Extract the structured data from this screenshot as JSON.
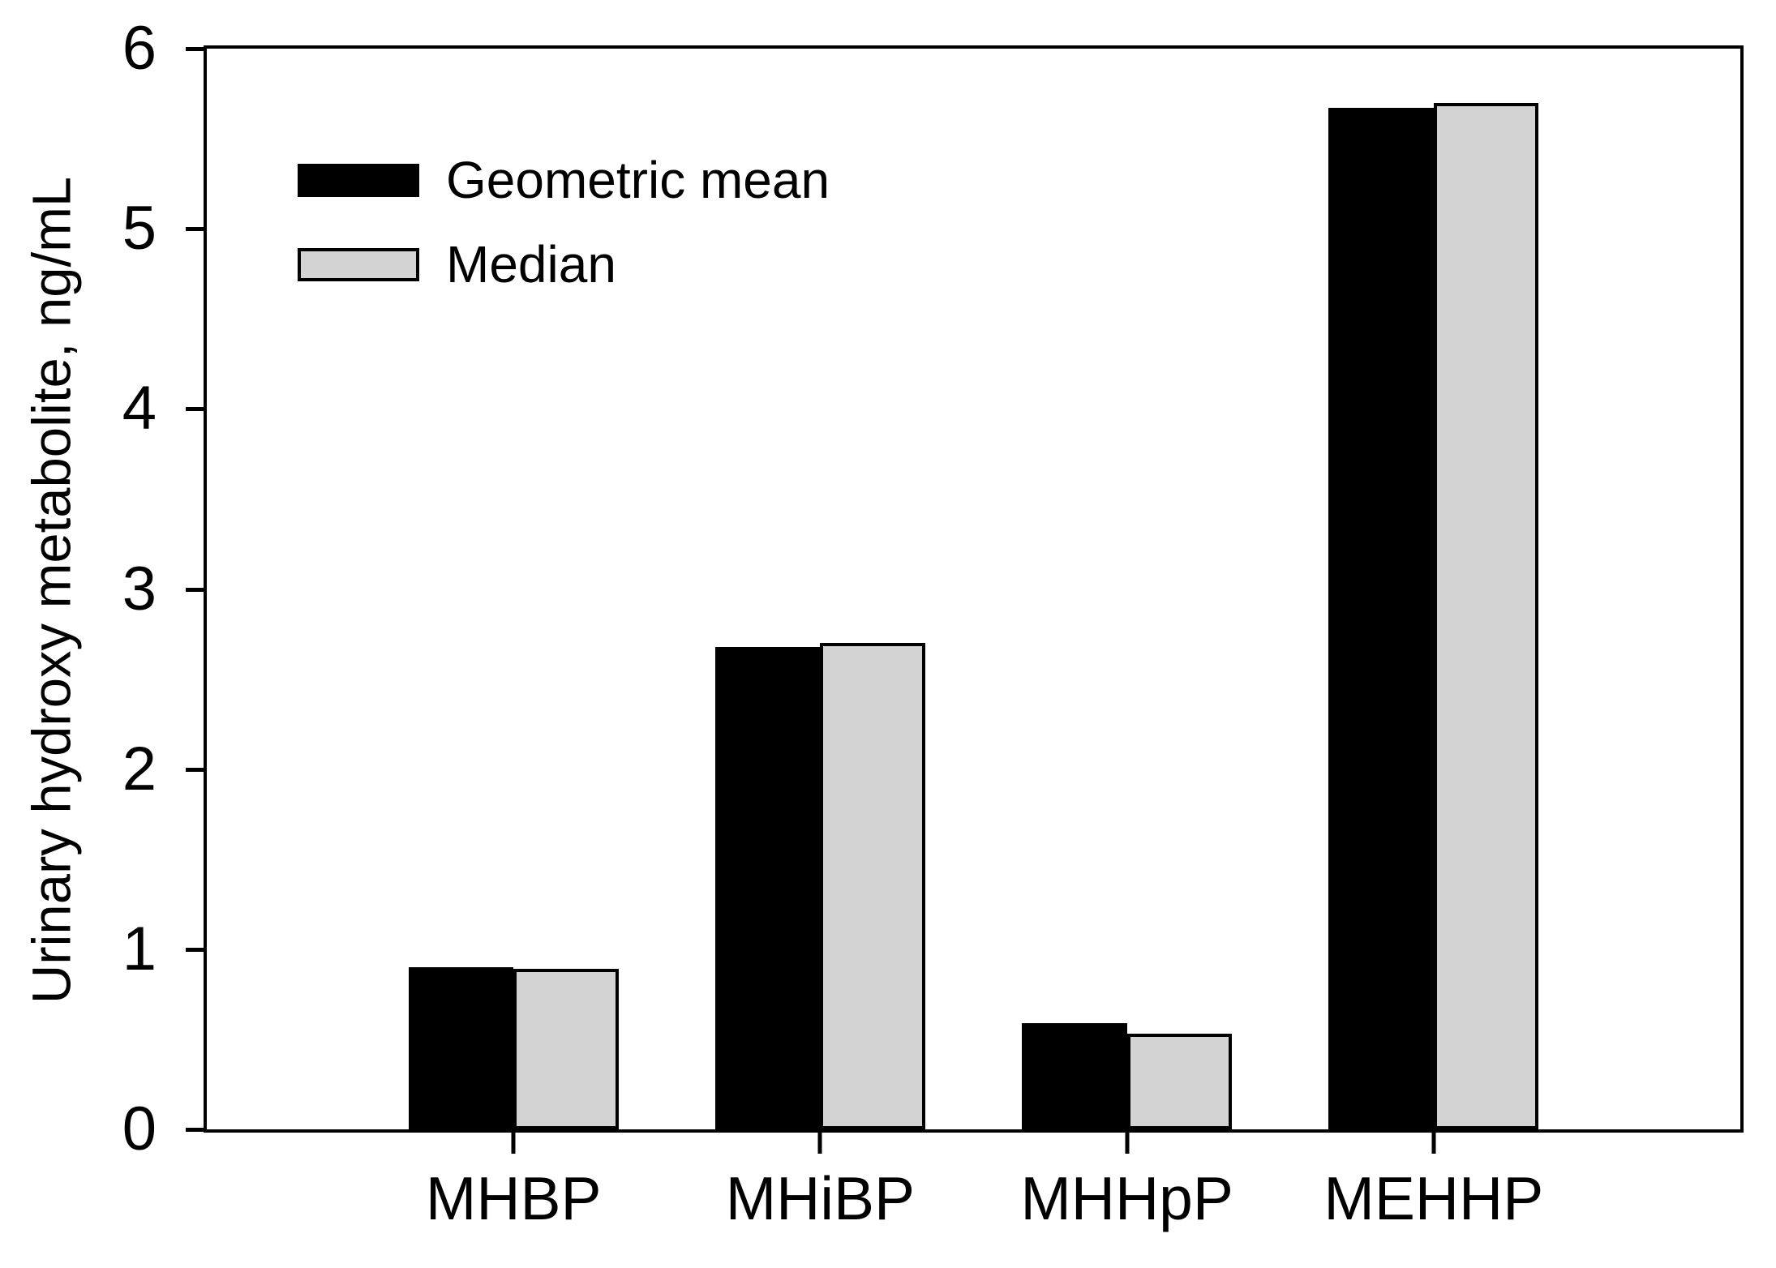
{
  "chart_data": {
    "type": "bar",
    "title": "",
    "xlabel": "",
    "ylabel": "Urinary hydroxy metabolite, ng/mL",
    "ylim": [
      0,
      6
    ],
    "y_ticks": [
      0,
      1,
      2,
      3,
      4,
      5,
      6
    ],
    "categories": [
      "MHBP",
      "MHiBP",
      "MHHpP",
      "MEHHP"
    ],
    "series": [
      {
        "name": "Geometric mean",
        "color": "#000000",
        "values": [
          0.9,
          2.68,
          0.59,
          5.67
        ]
      },
      {
        "name": "Median",
        "color": "#d3d3d3",
        "values": [
          0.89,
          2.7,
          0.53,
          5.7
        ]
      }
    ],
    "grid": false,
    "legend_position": "inside-upper-left",
    "frame": "full-box",
    "bar_width_pct": 6.84,
    "category_center_pct": [
      20,
      40,
      60,
      80
    ]
  }
}
